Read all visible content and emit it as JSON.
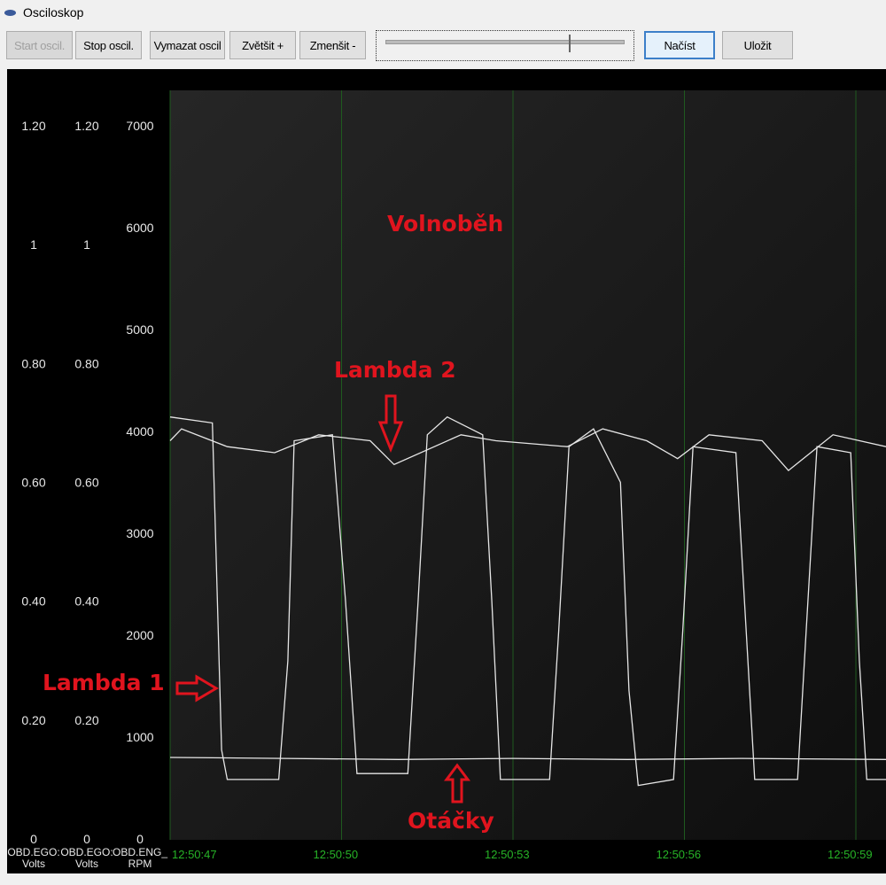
{
  "window": {
    "title": "Osciloskop"
  },
  "toolbar": {
    "start": "Start oscil.",
    "stop": "Stop oscil.",
    "clear": "Vymazat oscil",
    "zoom_in": "Zvětšit +",
    "zoom_out": "Zmenšit -",
    "load": "Načíst",
    "save": "Uložit",
    "slider_value": 0.82
  },
  "axes": {
    "volts1": {
      "ticks": [
        "1.20",
        "1",
        "0.80",
        "0.60",
        "0.40",
        "0.20",
        "0"
      ],
      "label1": "OBD.EGO:",
      "label2": "Volts"
    },
    "volts2": {
      "ticks": [
        "1.20",
        "1",
        "0.80",
        "0.60",
        "0.40",
        "0.20",
        "0"
      ],
      "label1": "OBD.EGO:",
      "label2": "Volts"
    },
    "rpm": {
      "ticks": [
        "7000",
        "6000",
        "5000",
        "4000",
        "3000",
        "2000",
        "1000",
        "0"
      ],
      "label1": "OBD.ENG_",
      "label2": "RPM"
    },
    "time_ticks": [
      "12:50:47",
      "12:50:50",
      "12:50:53",
      "12:50:56",
      "12:50:59"
    ]
  },
  "annotations": {
    "idle": "Volnoběh",
    "lambda2": "Lambda 2",
    "lambda1": "Lambda 1",
    "rpm": "Otáčky"
  },
  "colors": {
    "trace": "#e6e6e6",
    "grid": "#1f5a1f",
    "annotation": "#e0141e",
    "time_label": "#27b327"
  },
  "chart_data": {
    "type": "line",
    "x_range": [
      "12:50:47",
      "12:50:59.53"
    ],
    "volts_range": [
      0,
      1.2
    ],
    "rpm_range": [
      0,
      7000
    ],
    "series": [
      {
        "axis": "volts",
        "points": [
          [
            "12:50:47.0",
            0.71
          ],
          [
            "12:50:47.74",
            0.7
          ],
          [
            "12:50:47.9",
            0.15
          ],
          [
            "12:50:48.0",
            0.1
          ],
          [
            "12:50:48.9",
            0.1
          ],
          [
            "12:50:49.06",
            0.3
          ],
          [
            "12:50:49.17",
            0.67
          ],
          [
            "12:50:49.84",
            0.68
          ],
          [
            "12:50:50.07",
            0.4
          ],
          [
            "12:50:50.27",
            0.11
          ],
          [
            "12:50:51.16",
            0.11
          ],
          [
            "12:50:51.34",
            0.4
          ],
          [
            "12:50:51.5",
            0.68
          ],
          [
            "12:50:51.85",
            0.71
          ],
          [
            "12:50:52.47",
            0.68
          ],
          [
            "12:50:52.63",
            0.4
          ],
          [
            "12:50:52.78",
            0.1
          ],
          [
            "12:50:53.64",
            0.1
          ],
          [
            "12:50:53.8",
            0.35
          ],
          [
            "12:50:53.98",
            0.66
          ],
          [
            "12:50:54.41",
            0.69
          ],
          [
            "12:50:54.88",
            0.6
          ],
          [
            "12:50:55.03",
            0.25
          ],
          [
            "12:50:55.19",
            0.09
          ],
          [
            "12:50:55.81",
            0.1
          ],
          [
            "12:50:55.97",
            0.35
          ],
          [
            "12:50:56.15",
            0.66
          ],
          [
            "12:50:56.9",
            0.65
          ],
          [
            "12:50:57.08",
            0.35
          ],
          [
            "12:50:57.23",
            0.1
          ],
          [
            "12:50:57.98",
            0.1
          ],
          [
            "12:50:58.13",
            0.35
          ],
          [
            "12:50:58.32",
            0.66
          ],
          [
            "12:50:58.91",
            0.65
          ],
          [
            "12:50:59.06",
            0.3
          ],
          [
            "12:50:59.19",
            0.1
          ],
          [
            "12:50:59.53",
            0.1
          ]
        ]
      },
      {
        "axis": "volts",
        "points": [
          [
            "12:50:47.0",
            0.67
          ],
          [
            "12:50:47.2",
            0.69
          ],
          [
            "12:50:48.0",
            0.66
          ],
          [
            "12:50:48.83",
            0.65
          ],
          [
            "12:50:49.6",
            0.68
          ],
          [
            "12:50:50.5",
            0.67
          ],
          [
            "12:50:50.92",
            0.63
          ],
          [
            "12:50:52.09",
            0.68
          ],
          [
            "12:50:52.7",
            0.67
          ],
          [
            "12:50:53.95",
            0.66
          ],
          [
            "12:50:54.57",
            0.69
          ],
          [
            "12:50:55.34",
            0.67
          ],
          [
            "12:50:55.88",
            0.64
          ],
          [
            "12:50:56.43",
            0.68
          ],
          [
            "12:50:57.36",
            0.67
          ],
          [
            "12:50:57.82",
            0.62
          ],
          [
            "12:50:58.6",
            0.68
          ],
          [
            "12:50:59.53",
            0.66
          ]
        ]
      },
      {
        "axis": "rpm",
        "points": [
          [
            "12:50:47.0",
            800
          ],
          [
            "12:50:49.0",
            790
          ],
          [
            "12:50:51.0",
            780
          ],
          [
            "12:50:53.0",
            790
          ],
          [
            "12:50:55.0",
            780
          ],
          [
            "12:50:57.0",
            790
          ],
          [
            "12:50:59.53",
            780
          ]
        ]
      }
    ]
  }
}
